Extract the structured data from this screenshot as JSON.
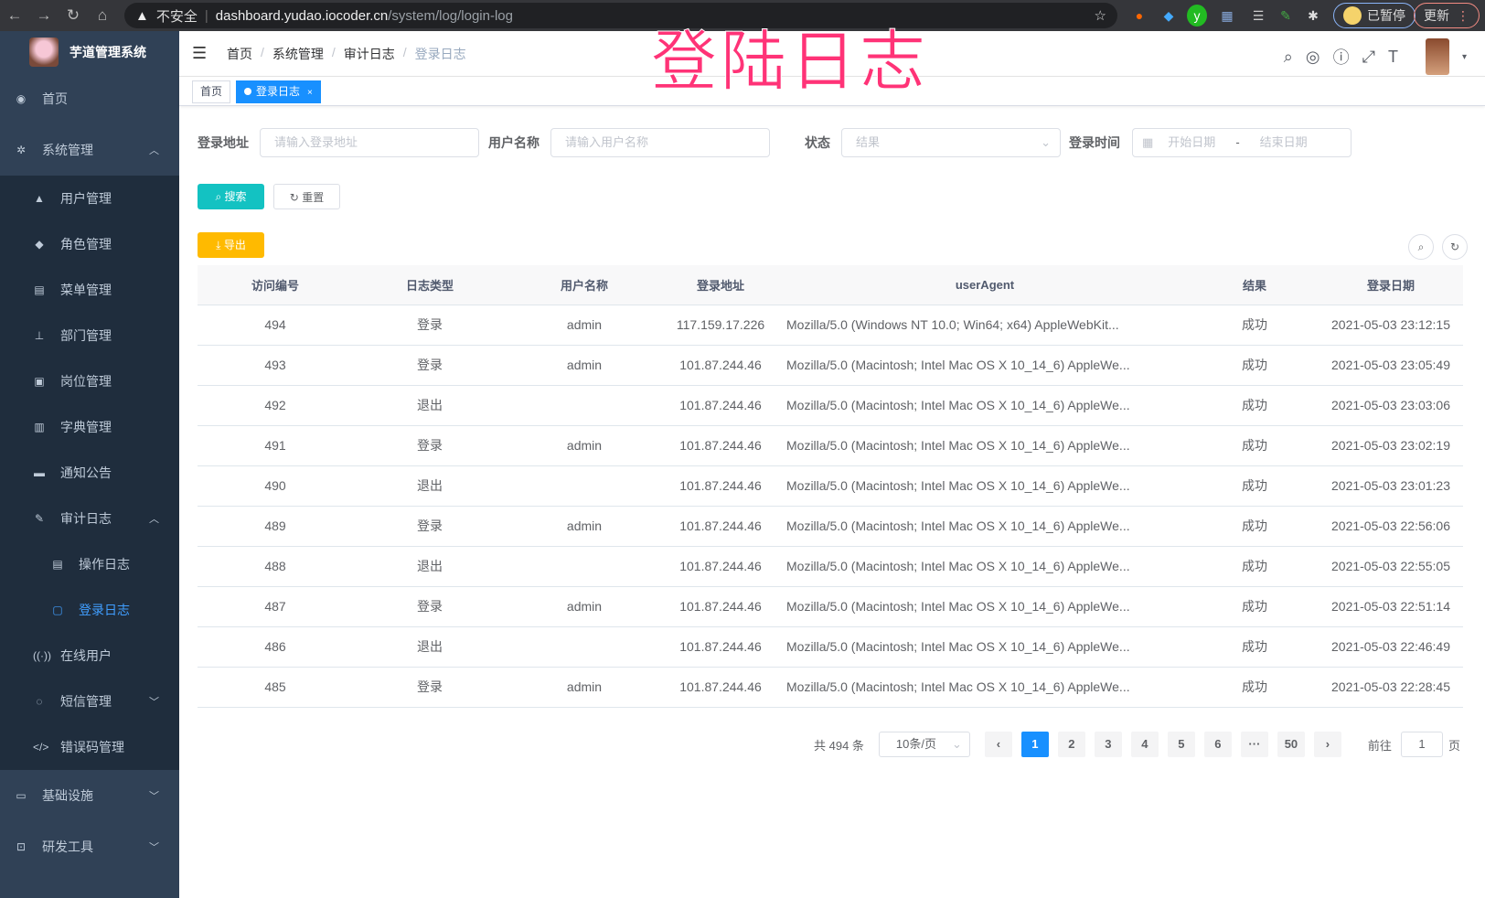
{
  "browser": {
    "security": "不安全",
    "host": "dashboard.yudao.iocoder.cn",
    "path": "/system/log/login-log",
    "paused": "已暂停",
    "update": "更新"
  },
  "overlay_title": "登陆日志",
  "sidebar": {
    "app_name": "芋道管理系统",
    "items": [
      {
        "label": "首页",
        "icon": "dashboard-icon"
      },
      {
        "label": "系统管理",
        "icon": "gear-icon"
      },
      {
        "label": "用户管理",
        "icon": "user-icon"
      },
      {
        "label": "角色管理",
        "icon": "role-icon"
      },
      {
        "label": "菜单管理",
        "icon": "menu-icon"
      },
      {
        "label": "部门管理",
        "icon": "tree-icon"
      },
      {
        "label": "岗位管理",
        "icon": "post-icon"
      },
      {
        "label": "字典管理",
        "icon": "dict-icon"
      },
      {
        "label": "通知公告",
        "icon": "message-icon"
      },
      {
        "label": "审计日志",
        "icon": "edit-icon"
      },
      {
        "label": "操作日志",
        "icon": "form-icon"
      },
      {
        "label": "登录日志",
        "icon": "logininfor-icon"
      },
      {
        "label": "在线用户",
        "icon": "online-icon"
      },
      {
        "label": "短信管理",
        "icon": "validcode-icon"
      },
      {
        "label": "错误码管理",
        "icon": "code-icon"
      },
      {
        "label": "基础设施",
        "icon": "monitor-icon"
      },
      {
        "label": "研发工具",
        "icon": "tool-icon"
      }
    ]
  },
  "breadcrumb": [
    "首页",
    "系统管理",
    "审计日志",
    "登录日志"
  ],
  "tags": [
    "首页",
    "登录日志"
  ],
  "filters": {
    "ip_label": "登录地址",
    "ip_placeholder": "请输入登录地址",
    "user_label": "用户名称",
    "user_placeholder": "请输入用户名称",
    "status_label": "状态",
    "status_placeholder": "结果",
    "time_label": "登录时间",
    "start_placeholder": "开始日期",
    "range_sep": "-",
    "end_placeholder": "结束日期"
  },
  "buttons": {
    "search": "搜索",
    "reset": "重置",
    "export": "导出"
  },
  "colors": {
    "sidebar": "#304156",
    "primary": "#1890ff",
    "search": "#13c2c2",
    "export": "#ffba00",
    "overlay": "#ff3377"
  },
  "table": {
    "headers": [
      "访问编号",
      "日志类型",
      "用户名称",
      "登录地址",
      "userAgent",
      "结果",
      "登录日期"
    ],
    "rows": [
      [
        "494",
        "登录",
        "admin",
        "117.159.17.226",
        "Mozilla/5.0 (Windows NT 10.0; Win64; x64) AppleWebKit...",
        "成功",
        "2021-05-03 23:12:15"
      ],
      [
        "493",
        "登录",
        "admin",
        "101.87.244.46",
        "Mozilla/5.0 (Macintosh; Intel Mac OS X 10_14_6) AppleWe...",
        "成功",
        "2021-05-03 23:05:49"
      ],
      [
        "492",
        "退出",
        "",
        "101.87.244.46",
        "Mozilla/5.0 (Macintosh; Intel Mac OS X 10_14_6) AppleWe...",
        "成功",
        "2021-05-03 23:03:06"
      ],
      [
        "491",
        "登录",
        "admin",
        "101.87.244.46",
        "Mozilla/5.0 (Macintosh; Intel Mac OS X 10_14_6) AppleWe...",
        "成功",
        "2021-05-03 23:02:19"
      ],
      [
        "490",
        "退出",
        "",
        "101.87.244.46",
        "Mozilla/5.0 (Macintosh; Intel Mac OS X 10_14_6) AppleWe...",
        "成功",
        "2021-05-03 23:01:23"
      ],
      [
        "489",
        "登录",
        "admin",
        "101.87.244.46",
        "Mozilla/5.0 (Macintosh; Intel Mac OS X 10_14_6) AppleWe...",
        "成功",
        "2021-05-03 22:56:06"
      ],
      [
        "488",
        "退出",
        "",
        "101.87.244.46",
        "Mozilla/5.0 (Macintosh; Intel Mac OS X 10_14_6) AppleWe...",
        "成功",
        "2021-05-03 22:55:05"
      ],
      [
        "487",
        "登录",
        "admin",
        "101.87.244.46",
        "Mozilla/5.0 (Macintosh; Intel Mac OS X 10_14_6) AppleWe...",
        "成功",
        "2021-05-03 22:51:14"
      ],
      [
        "486",
        "退出",
        "",
        "101.87.244.46",
        "Mozilla/5.0 (Macintosh; Intel Mac OS X 10_14_6) AppleWe...",
        "成功",
        "2021-05-03 22:46:49"
      ],
      [
        "485",
        "登录",
        "admin",
        "101.87.244.46",
        "Mozilla/5.0 (Macintosh; Intel Mac OS X 10_14_6) AppleWe...",
        "成功",
        "2021-05-03 22:28:45"
      ]
    ]
  },
  "pagination": {
    "total": "共 494 条",
    "page_size": "10条/页",
    "pages": [
      "1",
      "2",
      "3",
      "4",
      "5",
      "6",
      "···",
      "50"
    ],
    "current": "1",
    "goto_label": "前往",
    "goto_value": "1",
    "goto_suffix": "页"
  }
}
